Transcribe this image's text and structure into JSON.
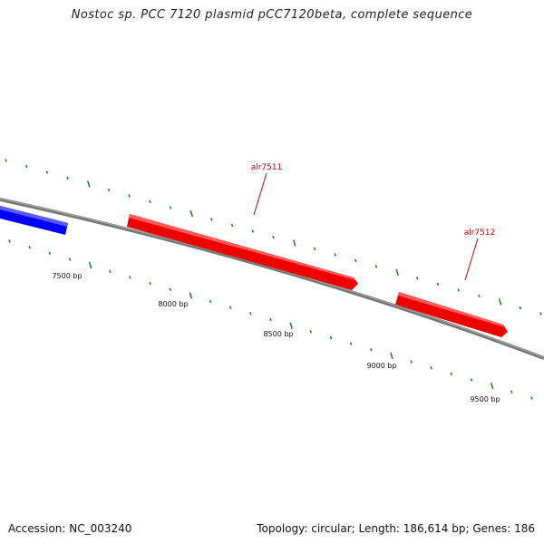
{
  "title": "Nostoc sp. PCC 7120 plasmid pCC7120beta, complete sequence",
  "footer": {
    "accession": "Accession: NC_003240",
    "summary": "Topology: circular; Length: 186,614 bp; Genes: 186"
  },
  "colors": {
    "backbone": "#777777",
    "forward_gene": "#ff0000",
    "reverse_gene": "#0000ff",
    "tick": "#228b22",
    "gene_label": "#cc0000"
  },
  "tick_labels": [
    {
      "id": "7500",
      "text": "7500 bp"
    },
    {
      "id": "8000",
      "text": "8000 bp"
    },
    {
      "id": "8500",
      "text": "8500 bp"
    },
    {
      "id": "9000",
      "text": "9000 bp"
    },
    {
      "id": "9500",
      "text": "9500 bp"
    }
  ],
  "genes": [
    {
      "id": "reverse-gene",
      "name": "",
      "strand": "reverse",
      "color": "#0000ff"
    },
    {
      "id": "alr7511",
      "name": "alr7511",
      "strand": "forward",
      "color": "#ff0000"
    },
    {
      "id": "alr7512",
      "name": "alr7512",
      "strand": "forward",
      "color": "#ff0000"
    }
  ]
}
